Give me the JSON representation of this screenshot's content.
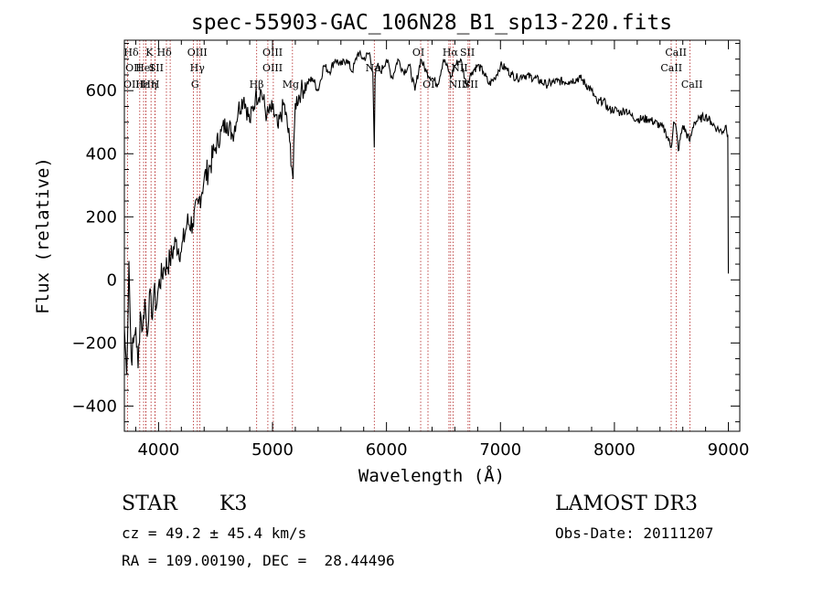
{
  "chart_data": {
    "type": "line",
    "title": "spec-55903-GAC_106N28_B1_sp13-220.fits",
    "xlabel": "Wavelength (Å)",
    "ylabel": "Flux (relative)",
    "xlim": [
      3700,
      9100
    ],
    "ylim": [
      -480,
      760
    ],
    "xticks": [
      4000,
      5000,
      6000,
      7000,
      8000,
      9000
    ],
    "xtick_labels": [
      "4000",
      "5000",
      "6000",
      "7000",
      "8000",
      "9000"
    ],
    "yticks": [
      -400,
      -200,
      0,
      200,
      400,
      600
    ],
    "ytick_labels": [
      "−400",
      "−200",
      "0",
      "200",
      "400",
      "600"
    ],
    "grid": false,
    "series": [
      {
        "name": "spectrum",
        "x": [
          3700,
          3720,
          3740,
          3760,
          3780,
          3800,
          3820,
          3840,
          3860,
          3880,
          3900,
          3920,
          3940,
          3960,
          3980,
          4000,
          4050,
          4100,
          4150,
          4200,
          4250,
          4300,
          4350,
          4400,
          4450,
          4500,
          4550,
          4600,
          4650,
          4700,
          4750,
          4800,
          4850,
          4900,
          4950,
          5000,
          5050,
          5100,
          5150,
          5180,
          5200,
          5250,
          5300,
          5350,
          5400,
          5450,
          5500,
          5550,
          5600,
          5650,
          5700,
          5750,
          5800,
          5850,
          5880,
          5893,
          5900,
          5920,
          5950,
          6000,
          6050,
          6100,
          6150,
          6200,
          6250,
          6300,
          6350,
          6400,
          6450,
          6500,
          6550,
          6563,
          6600,
          6650,
          6700,
          6750,
          6800,
          6850,
          6900,
          6950,
          7000,
          7050,
          7100,
          7150,
          7200,
          7300,
          7400,
          7500,
          7600,
          7700,
          7800,
          7850,
          7900,
          7950,
          8000,
          8050,
          8100,
          8150,
          8200,
          8300,
          8400,
          8450,
          8498,
          8520,
          8542,
          8560,
          8600,
          8662,
          8680,
          8700,
          8750,
          8800,
          8850,
          8900,
          8950,
          8980,
          8995,
          9000
        ],
        "y": [
          -150,
          -300,
          60,
          -250,
          -200,
          -150,
          -280,
          -100,
          -160,
          -60,
          -180,
          -40,
          -120,
          -30,
          -90,
          -20,
          40,
          60,
          120,
          90,
          180,
          180,
          240,
          320,
          360,
          420,
          470,
          500,
          460,
          540,
          580,
          500,
          580,
          600,
          520,
          540,
          480,
          560,
          440,
          320,
          560,
          600,
          620,
          640,
          600,
          680,
          660,
          700,
          680,
          700,
          660,
          720,
          700,
          720,
          660,
          420,
          640,
          680,
          660,
          700,
          640,
          700,
          660,
          680,
          600,
          700,
          660,
          640,
          620,
          700,
          660,
          640,
          680,
          700,
          620,
          660,
          680,
          660,
          620,
          640,
          680,
          670,
          650,
          640,
          650,
          640,
          620,
          630,
          630,
          640,
          600,
          560,
          570,
          540,
          540,
          530,
          540,
          520,
          510,
          510,
          490,
          470,
          420,
          500,
          480,
          410,
          490,
          440,
          470,
          500,
          510,
          520,
          500,
          480,
          470,
          490,
          460,
          20
        ]
      }
    ],
    "lines": [
      {
        "name": "Hδ",
        "x": 3835
      },
      {
        "name": "OII",
        "x": 3727
      },
      {
        "name": "OIII",
        "x": 3869
      },
      {
        "name": "Hε",
        "x": 3889
      },
      {
        "name": "HeI",
        "x": 3888
      },
      {
        "name": "Hη",
        "x": 3970
      },
      {
        "name": "K",
        "x": 3934
      },
      {
        "name": "SII",
        "x": 4069
      },
      {
        "name": "H",
        "x": 3969
      },
      {
        "name": "Hδ",
        "x": 4102
      },
      {
        "name": "OIII",
        "x": 4363
      },
      {
        "name": "Hγ",
        "x": 4340
      },
      {
        "name": "G",
        "x": 4305
      },
      {
        "name": "Hβ",
        "x": 4861
      },
      {
        "name": "OIII",
        "x": 4959
      },
      {
        "name": "OIII",
        "x": 5007
      },
      {
        "name": "Mg",
        "x": 5175
      },
      {
        "name": "Na",
        "x": 5893
      },
      {
        "name": "OI",
        "x": 6300
      },
      {
        "name": "OI",
        "x": 6364
      },
      {
        "name": "Hα",
        "x": 6563
      },
      {
        "name": "NII",
        "x": 6548
      },
      {
        "name": "NII",
        "x": 6584
      },
      {
        "name": "SII",
        "x": 6716
      },
      {
        "name": "SII",
        "x": 6731
      },
      {
        "name": "CaII",
        "x": 8498
      },
      {
        "name": "CaII",
        "x": 8542
      },
      {
        "name": "CaII",
        "x": 8662
      }
    ],
    "line_labels": [
      {
        "text": "Hδ",
        "row": 0,
        "x": 3760
      },
      {
        "text": "K",
        "x": 3920,
        "row": 0
      },
      {
        "text": "Hδ",
        "x": 4050,
        "row": 0
      },
      {
        "text": "OIII",
        "x": 4340,
        "row": 0
      },
      {
        "text": "OIII",
        "x": 5000,
        "row": 0
      },
      {
        "text": "OI",
        "x": 6280,
        "row": 0
      },
      {
        "text": "Hα",
        "x": 6560,
        "row": 0
      },
      {
        "text": "SII",
        "x": 6710,
        "row": 0
      },
      {
        "text": "CaII",
        "x": 8540,
        "row": 0
      },
      {
        "text": "OII",
        "x": 3780,
        "row": 1
      },
      {
        "text": "HeI",
        "x": 3880,
        "row": 1
      },
      {
        "text": "SII",
        "x": 3980,
        "row": 1
      },
      {
        "text": "Hγ",
        "x": 4340,
        "row": 1
      },
      {
        "text": "OIII",
        "x": 5000,
        "row": 1
      },
      {
        "text": "Na",
        "x": 5880,
        "row": 1
      },
      {
        "text": "NII",
        "x": 6640,
        "row": 1
      },
      {
        "text": "CaII",
        "x": 8500,
        "row": 1
      },
      {
        "text": "OIII",
        "x": 3780,
        "row": 2
      },
      {
        "text": "Hε",
        "x": 3860,
        "row": 2
      },
      {
        "text": "Hη",
        "x": 3920,
        "row": 2
      },
      {
        "text": "H",
        "x": 3970,
        "row": 2
      },
      {
        "text": "G",
        "x": 4320,
        "row": 2
      },
      {
        "text": "Hβ",
        "x": 4860,
        "row": 2
      },
      {
        "text": "Mg",
        "x": 5160,
        "row": 2
      },
      {
        "text": "OI",
        "x": 6370,
        "row": 2
      },
      {
        "text": "NII",
        "x": 6620,
        "row": 2
      },
      {
        "text": "SII",
        "x": 6740,
        "row": 2
      },
      {
        "text": "CaII",
        "x": 8680,
        "row": 2
      }
    ],
    "colors": {
      "spectrum": "#000000",
      "lines": "#b22222"
    }
  },
  "info": {
    "object_class": "STAR",
    "subclass": "K3",
    "survey": "LAMOST DR3",
    "cz": "cz = 49.2 ± 45.4 km/s",
    "obs_date": "Obs-Date: 20111207",
    "coords": "RA = 109.00190, DEC =  28.44496"
  }
}
